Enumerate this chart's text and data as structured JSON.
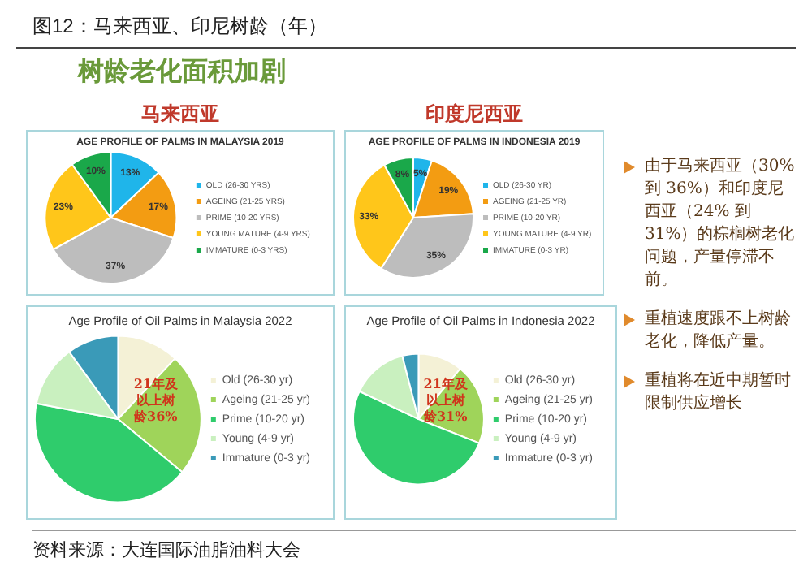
{
  "chart_data": [
    {
      "type": "other",
      "title": "图12：马来西亚、印尼树龄（年）",
      "subtitle": "树龄老化面积加剧"
    },
    {
      "type": "pie",
      "title": "马来西亚",
      "subtitle": "AGE PROFILE OF PALMS IN MALAYSIA 2019",
      "legend": "right",
      "categories": [
        "OLD (26-30 YRS)",
        "AGEING (21-25 YRS)",
        "PRIME (10-20 YRS)",
        "YOUNG MATURE (4-9 YRS)",
        "IMMATURE (0-3 YRS)"
      ],
      "values": [
        13,
        17,
        37,
        23,
        10
      ],
      "value_labels": [
        "13%",
        "17%",
        "37%",
        "23%",
        "10%"
      ],
      "colors": [
        "#1fb5ea",
        "#f39c12",
        "#bdbdbd",
        "#ffc61a",
        "#1aa84a"
      ]
    },
    {
      "type": "pie",
      "title": "印度尼西亚",
      "subtitle": "AGE PROFILE OF PALMS IN INDONESIA 2019",
      "legend": "right",
      "categories": [
        "OLD (26-30 YR)",
        "AGEING (21-25 YR)",
        "PRIME (10-20 YR)",
        "YOUNG MATURE (4-9 YR)",
        "IMMATURE (0-3 YR)"
      ],
      "values": [
        5,
        19,
        35,
        33,
        8
      ],
      "value_labels": [
        "5%",
        "19%",
        "35%",
        "33%",
        "8%"
      ],
      "colors": [
        "#1fb5ea",
        "#f39c12",
        "#bdbdbd",
        "#ffc61a",
        "#1aa84a"
      ]
    },
    {
      "type": "pie",
      "title": "Age Profile of Oil Palms in Malaysia 2022",
      "legend": "right",
      "categories": [
        "Old (26-30 yr)",
        "Ageing (21-25 yr)",
        "Prime (10-20 yr)",
        "Young (4-9 yr)",
        "Immature (0-3 yr)"
      ],
      "values": [
        12,
        24,
        42,
        12,
        10
      ],
      "colors": [
        "#f4f1d6",
        "#9fd45a",
        "#2fcc6c",
        "#c9f0bf",
        "#3a9ab8"
      ],
      "annotations": [
        "21年及以上树龄36%"
      ]
    },
    {
      "type": "pie",
      "title": "Age Profile of Oil Palms in Indonesia 2022",
      "legend": "right",
      "categories": [
        "Old (26-30 yr)",
        "Ageing (21-25 yr)",
        "Prime (10-20 yr)",
        "Young (4-9 yr)",
        "Immature (0-3 yr)"
      ],
      "values": [
        11,
        20,
        51,
        14,
        4
      ],
      "colors": [
        "#f4f1d6",
        "#9fd45a",
        "#2fcc6c",
        "#c9f0bf",
        "#3a9ab8"
      ],
      "annotations": [
        "21年及以上树龄31%"
      ]
    },
    {
      "type": "other",
      "annotations": [
        "由于马来西亚（30% 到 36%）和印度尼西亚（24% 到 31%）的棕榈树老化问题，产量停滞不前。",
        "重植速度跟不上树龄老化，降低产量。",
        "重植将在近中期暂时限制供应增长"
      ]
    },
    {
      "type": "other",
      "annotations": [
        "资料来源：大连国际油脂油料大会"
      ]
    }
  ]
}
